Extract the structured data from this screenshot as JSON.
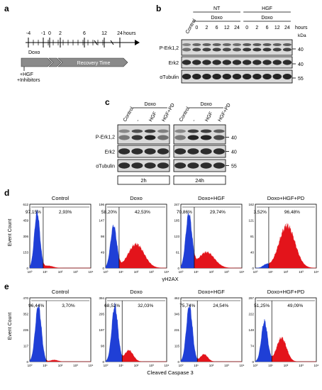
{
  "panel_a": {
    "letter": "a",
    "ticks": [
      "-4",
      "-1",
      "0",
      "2",
      "6",
      "12",
      "24"
    ],
    "unit": "hours",
    "doxo": "Doxo",
    "recovery": "Recovery Time",
    "treatment_line1": "+HGF",
    "treatment_line2": "+Inhibitors"
  },
  "panel_b": {
    "letter": "b",
    "group_nt": "NT",
    "group_hgf": "HGF",
    "doxo": "Doxo",
    "control": "Control",
    "times": [
      "0",
      "2",
      "6",
      "12",
      "24"
    ],
    "unit": "hours",
    "kda": "kDa",
    "rows": [
      "P-Erk1,2",
      "Erk2",
      "αTubulin"
    ],
    "markers": [
      "40",
      "40",
      "55"
    ]
  },
  "panel_c": {
    "letter": "c",
    "doxo": "Doxo",
    "lanes": [
      "Control",
      "-",
      "HGF",
      "HGF+PD"
    ],
    "rows": [
      "P-Erk1,2",
      "Erk2",
      "αTubulin"
    ],
    "markers": [
      "40",
      "40",
      "55"
    ],
    "times": [
      "2h",
      "24h"
    ]
  },
  "panel_d": {
    "letter": "d",
    "y_label": "Event Count",
    "x_label": "γH2AX",
    "axis_ticks": [
      "10⁰",
      "10¹",
      "10²",
      "10³",
      "10⁴"
    ],
    "plots": [
      {
        "title": "Control",
        "ymax": "612",
        "yticks": [
          "459",
          "306",
          "153",
          "0"
        ],
        "left_pct": "97,15%",
        "right_pct": "2,93%"
      },
      {
        "title": "Doxo",
        "ymax": "196",
        "yticks": [
          "147",
          "98",
          "49",
          "0"
        ],
        "left_pct": "58,20%",
        "right_pct": "42,53%"
      },
      {
        "title": "Doxo+HGF",
        "ymax": "247",
        "yticks": [
          "185",
          "123",
          "61",
          "0"
        ],
        "left_pct": "70,86%",
        "right_pct": "29,74%"
      },
      {
        "title": "Doxo+HGF+PD",
        "ymax": "162",
        "yticks": [
          "121",
          "81",
          "40",
          "0"
        ],
        "left_pct": "3,52%",
        "right_pct": "96,48%"
      }
    ]
  },
  "panel_e": {
    "letter": "e",
    "y_label": "Event Count",
    "x_label": "Cleaved Caspase 3",
    "axis_ticks": [
      "10⁰",
      "10¹",
      "10²",
      "10³",
      "10⁴"
    ],
    "plots": [
      {
        "title": "Control",
        "ymax": "470",
        "yticks": [
          "352",
          "235",
          "117",
          "0"
        ],
        "left_pct": "96,44%",
        "right_pct": "3,70%"
      },
      {
        "title": "Doxo",
        "ymax": "394",
        "yticks": [
          "295",
          "197",
          "98",
          "0"
        ],
        "left_pct": "68,52%",
        "right_pct": "32,03%"
      },
      {
        "title": "Doxo+HGF",
        "ymax": "462",
        "yticks": [
          "346",
          "231",
          "115",
          "0"
        ],
        "left_pct": "75,74%",
        "right_pct": "24,54%"
      },
      {
        "title": "Doxo+HGF+PD",
        "ymax": "297",
        "yticks": [
          "222",
          "148",
          "74",
          "0"
        ],
        "left_pct": "51,25%",
        "right_pct": "49,09%"
      }
    ]
  },
  "colors": {
    "negative": "#1f3fd6",
    "positive": "#e3141b",
    "arrow_fill": "#8a8a8a",
    "blot_bg": "#d9d9d9",
    "band": "#1a1a1a"
  }
}
